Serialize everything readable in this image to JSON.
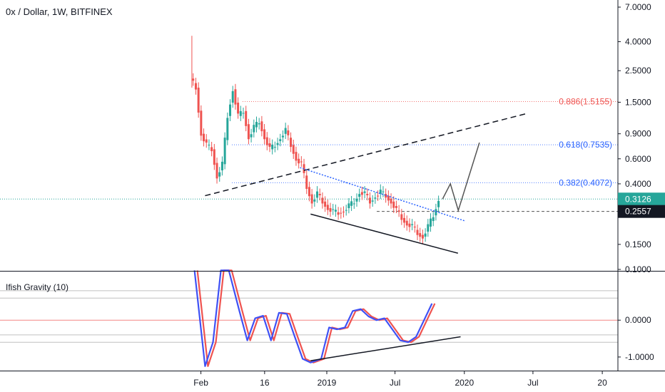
{
  "header": {
    "title": "0x / Dollar, 1W, BITFINEX"
  },
  "indicator": {
    "title": "Ifish Gravity (10)"
  },
  "colors": {
    "up": "#26a69a",
    "down": "#ef5350",
    "fib_red": "#ef5350",
    "fib_blue": "#2962ff",
    "ind_red": "#ef5350",
    "ind_blue": "#3f51f5",
    "badge_current": "#26a69a",
    "badge_dark": "#131722",
    "trend": "#131722"
  },
  "chart_data": [
    {
      "type": "candlestick",
      "title": "0x / Dollar, 1W, BITFINEX",
      "y_scale": "log",
      "ylim": [
        0.1,
        7.0
      ],
      "y_ticks": [
        "7.0000",
        "4.0000",
        "2.5000",
        "1.5000",
        "0.9000",
        "0.6000",
        "0.4000",
        "0.1500",
        "0.1000"
      ],
      "x_ticks": [
        "Feb",
        "16",
        "2019",
        "Jul",
        "2020",
        "Jul",
        "20"
      ],
      "current_price": "0.3126",
      "marked_level": "0.2557",
      "fib_levels": [
        {
          "label": "0.886(1.5155)",
          "value": 1.5155,
          "color": "red"
        },
        {
          "label": "0.618(0.7535)",
          "value": 0.7535,
          "color": "blue"
        },
        {
          "label": "0.382(0.4072)",
          "value": 0.4072,
          "color": "blue"
        }
      ],
      "price_path": [
        [
          "2018-01-08",
          2.2
        ],
        [
          "2018-01-22",
          1.9
        ],
        [
          "2018-02-05",
          0.9
        ],
        [
          "2018-02-19",
          0.75
        ],
        [
          "2018-03-05",
          0.7
        ],
        [
          "2018-03-19",
          0.45
        ],
        [
          "2018-04-02",
          0.55
        ],
        [
          "2018-04-16",
          1.2
        ],
        [
          "2018-04-30",
          1.85
        ],
        [
          "2018-05-14",
          1.2
        ],
        [
          "2018-05-28",
          1.3
        ],
        [
          "2018-06-11",
          0.85
        ],
        [
          "2018-06-25",
          1.0
        ],
        [
          "2018-07-09",
          1.1
        ],
        [
          "2018-07-23",
          0.85
        ],
        [
          "2018-08-06",
          0.7
        ],
        [
          "2018-08-20",
          0.75
        ],
        [
          "2018-09-03",
          0.85
        ],
        [
          "2018-09-17",
          0.95
        ],
        [
          "2018-10-01",
          0.75
        ],
        [
          "2018-10-15",
          0.6
        ],
        [
          "2018-10-29",
          0.55
        ],
        [
          "2018-11-12",
          0.38
        ],
        [
          "2018-11-26",
          0.3
        ],
        [
          "2018-12-10",
          0.34
        ],
        [
          "2018-12-24",
          0.3
        ],
        [
          "2019-01-07",
          0.27
        ],
        [
          "2019-01-21",
          0.255
        ],
        [
          "2019-02-04",
          0.25
        ],
        [
          "2019-02-18",
          0.26
        ],
        [
          "2019-03-04",
          0.28
        ],
        [
          "2019-03-18",
          0.3
        ],
        [
          "2019-04-01",
          0.35
        ],
        [
          "2019-04-15",
          0.34
        ],
        [
          "2019-04-29",
          0.3
        ],
        [
          "2019-05-13",
          0.33
        ],
        [
          "2019-05-27",
          0.35
        ],
        [
          "2019-06-10",
          0.33
        ],
        [
          "2019-06-24",
          0.3
        ],
        [
          "2019-07-08",
          0.26
        ],
        [
          "2019-07-22",
          0.23
        ],
        [
          "2019-08-05",
          0.21
        ],
        [
          "2019-08-19",
          0.2
        ],
        [
          "2019-09-02",
          0.18
        ],
        [
          "2019-09-16",
          0.17
        ],
        [
          "2019-09-30",
          0.2
        ],
        [
          "2019-10-14",
          0.24
        ],
        [
          "2019-10-28",
          0.3126
        ]
      ],
      "trend_lines": [
        {
          "style": "dashed",
          "points": [
            [
              "2018-02-12",
              0.33
            ],
            [
              "2020-06-15",
              1.25
            ]
          ]
        },
        {
          "style": "dotted-blue",
          "points": [
            [
              "2018-10-22",
              0.52
            ],
            [
              "2020-01-01",
              0.22
            ]
          ]
        },
        {
          "style": "solid",
          "points": [
            [
              "2018-11-19",
              0.245
            ],
            [
              "2019-12-15",
              0.13
            ]
          ]
        }
      ],
      "projection": [
        [
          "2019-11-04",
          0.3126
        ],
        [
          "2019-11-25",
          0.4
        ],
        [
          "2019-12-16",
          0.26
        ],
        [
          "2020-02-10",
          0.78
        ]
      ]
    },
    {
      "type": "line",
      "title": "Ifish Gravity (10)",
      "ylim": [
        -1.35,
        1.3
      ],
      "y_ticks": [
        "0.0000",
        "-1.0000"
      ],
      "series": [
        {
          "points": [
            [
              "2018-01-15",
              1.35
            ],
            [
              "2018-02-12",
              -1.25
            ],
            [
              "2018-03-05",
              -0.6
            ],
            [
              "2018-03-26",
              1.35
            ],
            [
              "2018-04-16",
              1.35
            ],
            [
              "2018-05-14",
              0.25
            ],
            [
              "2018-06-04",
              -0.55
            ],
            [
              "2018-06-25",
              0.05
            ],
            [
              "2018-07-16",
              0.12
            ],
            [
              "2018-08-06",
              -0.55
            ],
            [
              "2018-08-27",
              0.2
            ],
            [
              "2018-09-17",
              0.17
            ],
            [
              "2018-10-08",
              -0.45
            ],
            [
              "2018-10-29",
              -1.05
            ],
            [
              "2018-11-19",
              -1.15
            ],
            [
              "2018-12-17",
              -1.05
            ],
            [
              "2019-01-07",
              -0.2
            ],
            [
              "2019-01-28",
              -0.25
            ],
            [
              "2019-02-18",
              -0.2
            ],
            [
              "2019-03-11",
              0.25
            ],
            [
              "2019-04-01",
              0.3
            ],
            [
              "2019-04-22",
              0.1
            ],
            [
              "2019-05-13",
              0.0
            ],
            [
              "2019-06-03",
              0.05
            ],
            [
              "2019-06-24",
              -0.25
            ],
            [
              "2019-07-15",
              -0.55
            ],
            [
              "2019-08-05",
              -0.6
            ],
            [
              "2019-08-26",
              -0.45
            ],
            [
              "2019-09-16",
              0.0
            ],
            [
              "2019-10-07",
              0.45
            ]
          ]
        }
      ],
      "trend_line": [
        [
          "2018-11-19",
          -1.1
        ],
        [
          "2019-12-22",
          -0.45
        ]
      ]
    }
  ]
}
